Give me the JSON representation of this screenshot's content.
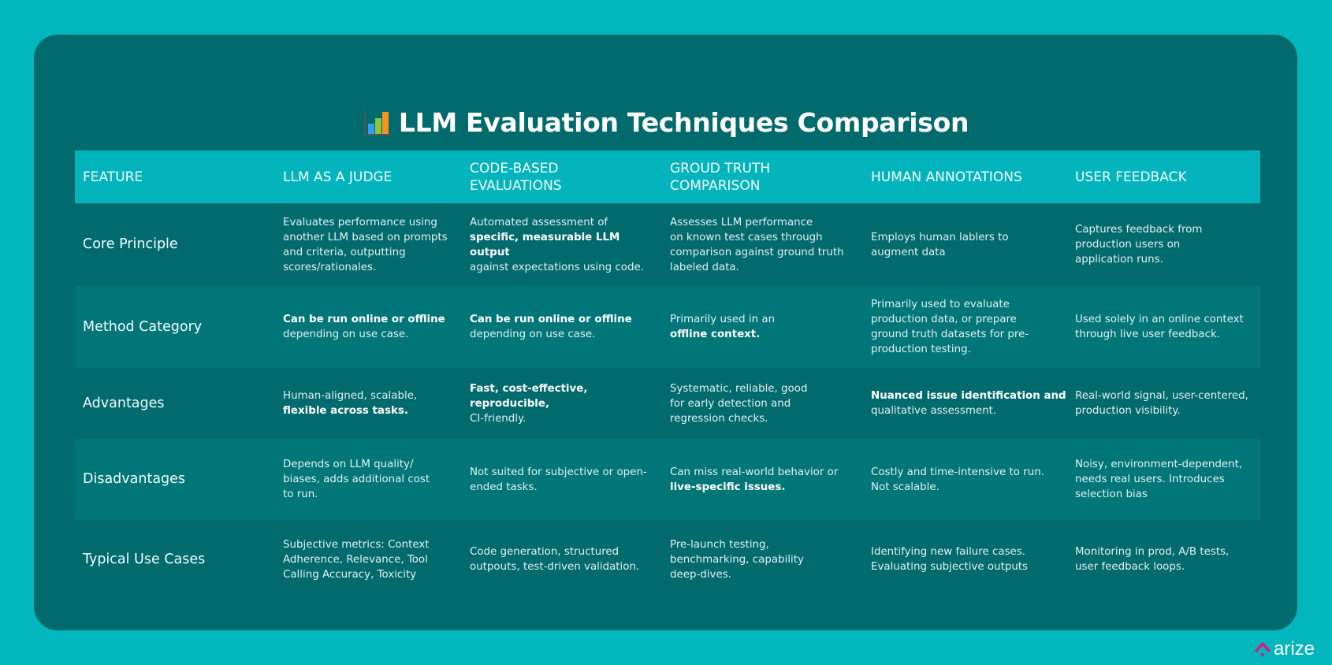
{
  "title": "LLM Evaluation Techniques Comparison",
  "title_icon": "bar-chart-icon",
  "headers": [
    "Feature",
    "LLM as a Judge",
    "Code-Based\nEvaluations",
    "Groud Truth\nComparison",
    "Human Annotations",
    "User Feedback"
  ],
  "rows": [
    {
      "label": "Core Principle",
      "cells": [
        [
          {
            "t": "Evaluates performance using\nanother LLM based on prompts\nand criteria, outputting\nscores/rationales."
          }
        ],
        [
          {
            "t": "Automated assessment of\n"
          },
          {
            "t": "specific, measurable LLM output",
            "b": true
          },
          {
            "t": "\nagainst expectations using code."
          }
        ],
        [
          {
            "t": "Assesses LLM performance\non known test cases through\ncomparison against ground truth\nlabeled data."
          }
        ],
        [
          {
            "t": "Employs human lablers to\naugment data"
          }
        ],
        [
          {
            "t": "Captures feedback from\nproduction users on\napplication runs."
          }
        ]
      ]
    },
    {
      "label": "Method Category",
      "cells": [
        [
          {
            "t": "Can be run online or offline",
            "b": true
          },
          {
            "t": "\ndepending on use case."
          }
        ],
        [
          {
            "t": "Can be run online or offline",
            "b": true
          },
          {
            "t": "\ndepending on use case."
          }
        ],
        [
          {
            "t": "Primarily used in an\n"
          },
          {
            "t": "offline context.",
            "b": true
          }
        ],
        [
          {
            "t": "Primarily used to evaluate\nproduction data, or prepare\nground truth datasets for pre-\nproduction testing."
          }
        ],
        [
          {
            "t": "Used solely in an online context\nthrough live user feedback."
          }
        ]
      ]
    },
    {
      "label": "Advantages",
      "cells": [
        [
          {
            "t": "Human-aligned, scalable,\n"
          },
          {
            "t": "flexible across tasks.",
            "b": true
          }
        ],
        [
          {
            "t": "Fast, cost-effective, reproducible,",
            "b": true
          },
          {
            "t": "\nCI-friendly."
          }
        ],
        [
          {
            "t": "Systematic, reliable, good\nfor early detection and\nregression checks."
          }
        ],
        [
          {
            "t": "Nuanced issue identification and",
            "b": true
          },
          {
            "t": "\nqualitative assessment."
          }
        ],
        [
          {
            "t": "Real-world signal, user-centered,\nproduction visibility."
          }
        ]
      ]
    },
    {
      "label": "Disadvantages",
      "cells": [
        [
          {
            "t": "Depends on LLM quality/\nbiases, adds additional cost\nto run."
          }
        ],
        [
          {
            "t": "Not suited for subjective or open-\nended tasks."
          }
        ],
        [
          {
            "t": "Can miss real-world behavior or\n"
          },
          {
            "t": "live-specific issues.",
            "b": true
          }
        ],
        [
          {
            "t": "Costly and time-intensive to run.\nNot scalable."
          }
        ],
        [
          {
            "t": "Noisy, environment-dependent,\nneeds real users. Introduces\nselection bias"
          }
        ]
      ]
    },
    {
      "label": "Typical Use Cases",
      "cells": [
        [
          {
            "t": "Subjective metrics: Context\nAdherence, Relevance, Tool\nCalling Accuracy, Toxicity"
          }
        ],
        [
          {
            "t": "Code generation, structured\noutpouts, test-driven validation."
          }
        ],
        [
          {
            "t": "Pre-launch testing,\nbenchmarking, capability\ndeep-dives."
          }
        ],
        [
          {
            "t": "Identifying new failure cases.\nEvaluating subjective outputs"
          }
        ],
        [
          {
            "t": "Monitoring in prod, A/B tests,\nuser feedback loops."
          }
        ]
      ]
    }
  ],
  "brand": {
    "name": "arize",
    "icon": "arize-logo-icon",
    "accent": "#e5157a"
  },
  "colors": {
    "background": "#02b6be",
    "card": "#016a6d",
    "header": "#03b4bc",
    "row_alt": "#017679"
  }
}
